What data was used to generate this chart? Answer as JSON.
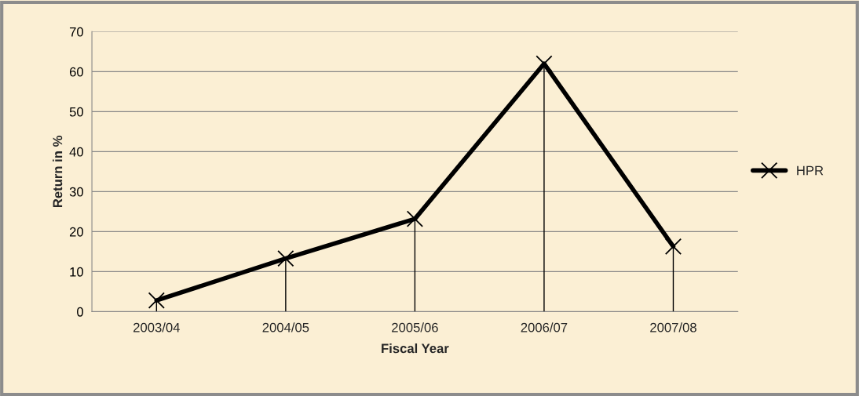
{
  "chart_data": {
    "type": "line",
    "xlabel": "Fiscal Year",
    "ylabel": "Return in %",
    "categories": [
      "2003/04",
      "2004/05",
      "2005/06",
      "2006/07",
      "2007/08"
    ],
    "series": [
      {
        "name": "HPR",
        "color": "#000000",
        "values": [
          2.8,
          13.3,
          23.2,
          62.0,
          16.3
        ],
        "errors": [
          [
            0,
            2.8
          ],
          [
            0,
            13.3
          ],
          [
            0,
            23.2
          ],
          [
            0,
            62.0
          ],
          [
            0,
            16.3
          ]
        ]
      }
    ],
    "ylim": [
      0,
      70
    ],
    "yticks": [
      0,
      10,
      20,
      30,
      40,
      50,
      60,
      70
    ],
    "grid": "y",
    "legend": "right",
    "marker": "cross",
    "line_style": "solid"
  }
}
